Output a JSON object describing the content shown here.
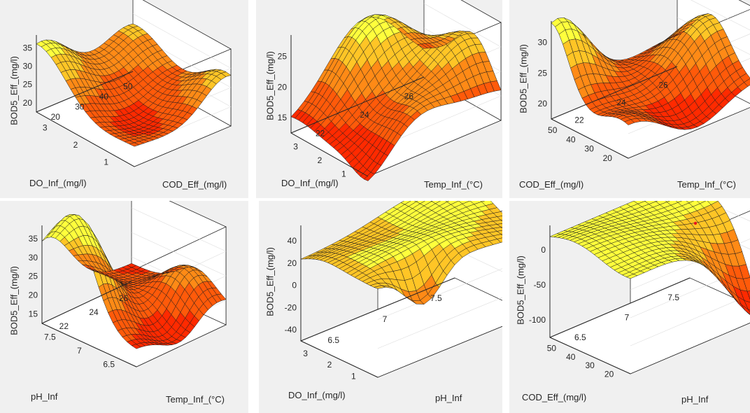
{
  "chart_data": [
    {
      "type": "surface",
      "xlabel": "DO_Inf_(mg/l)",
      "ylabel": "COD_Eff_(mg/l)",
      "zlabel": "BOD5_Eff_(mg/l)",
      "x_ticks": [
        "3",
        "2",
        "1"
      ],
      "y_ticks": [
        "20",
        "30",
        "40",
        "50"
      ],
      "z_ticks": [
        "20",
        "25",
        "30",
        "35"
      ],
      "x_range": [
        0.5,
        3.2
      ],
      "y_range": [
        20,
        57
      ],
      "z_range": [
        15,
        40
      ]
    },
    {
      "type": "surface",
      "xlabel": "DO_Inf_(mg/l)",
      "ylabel": "Temp_Inf_(°C)",
      "zlabel": "BOD5_Eff_(mg/l)",
      "x_ticks": [
        "3",
        "2",
        "1"
      ],
      "y_ticks": [
        "22",
        "24",
        "26"
      ],
      "z_ticks": [
        "15",
        "20",
        "25"
      ],
      "x_range": [
        0.5,
        3.2
      ],
      "y_range": [
        21,
        27.5
      ],
      "z_range": [
        10,
        28
      ]
    },
    {
      "type": "surface",
      "xlabel": "COD_Eff_(mg/l)",
      "ylabel": "Temp_Inf_(°C)",
      "zlabel": "BOD5_Eff_(mg/l)",
      "x_ticks": [
        "50",
        "40",
        "30",
        "20"
      ],
      "y_ticks": [
        "22",
        "24",
        "26"
      ],
      "z_ticks": [
        "20",
        "25",
        "30"
      ],
      "x_range": [
        18,
        57
      ],
      "y_range": [
        21,
        27.5
      ],
      "z_range": [
        15,
        35
      ]
    },
    {
      "type": "surface",
      "xlabel": "pH_Inf",
      "ylabel": "Temp_Inf_(°C)",
      "zlabel": "BOD5_Eff_(mg/l)",
      "x_ticks": [
        "7.5",
        "7",
        "6.5"
      ],
      "y_ticks": [
        "22",
        "24",
        "26"
      ],
      "z_ticks": [
        "15",
        "20",
        "25",
        "30",
        "35"
      ],
      "x_range": [
        6.2,
        7.9
      ],
      "y_range": [
        21,
        27.5
      ],
      "z_range": [
        13,
        40
      ]
    },
    {
      "type": "surface",
      "xlabel": "DO_Inf_(mg/l)",
      "ylabel": "pH_Inf",
      "zlabel": "BOD5_Eff_(mg/l)",
      "x_ticks": [
        "3",
        "2",
        "1"
      ],
      "y_ticks": [
        "6.5",
        "7",
        "7.5"
      ],
      "z_ticks": [
        "-40",
        "-20",
        "0",
        "20",
        "40"
      ],
      "x_range": [
        0.5,
        3.2
      ],
      "y_range": [
        6.2,
        7.9
      ],
      "z_range": [
        -50,
        45
      ]
    },
    {
      "type": "surface",
      "xlabel": "COD_Eff_(mg/l)",
      "ylabel": "pH_Inf",
      "zlabel": "BOD5_Eff_(mg/l)",
      "x_ticks": [
        "50",
        "40",
        "30",
        "20"
      ],
      "y_ticks": [
        "6.5",
        "7",
        "7.5"
      ],
      "z_ticks": [
        "-100",
        "-50",
        "0"
      ],
      "x_range": [
        18,
        57
      ],
      "y_range": [
        6.2,
        7.9
      ],
      "z_range": [
        -140,
        20
      ]
    }
  ]
}
